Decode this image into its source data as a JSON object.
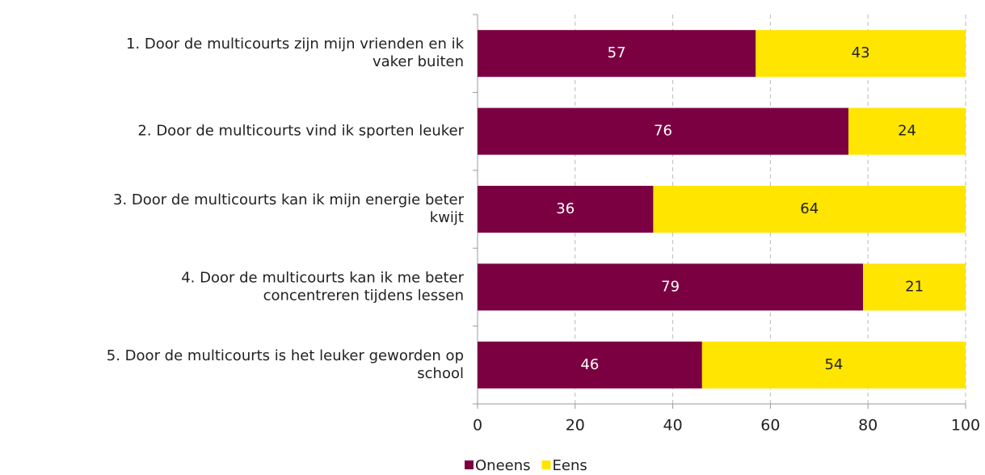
{
  "chart_data": {
    "type": "stacked-bar-horizontal",
    "categories": [
      [
        "1. Door de multicourts zijn mijn vrienden en ik",
        "vaker buiten"
      ],
      [
        "2. Door de multicourts vind ik sporten leuker"
      ],
      [
        "3. Door de multicourts kan ik mijn energie beter",
        "kwijt"
      ],
      [
        "4. Door de multicourts kan ik me beter",
        "concentreren tijdens lessen"
      ],
      [
        "5. Door de multicourts is het leuker geworden op",
        "school"
      ]
    ],
    "series": [
      {
        "name": "Oneens",
        "color": "#7b0041",
        "label_color": "#ffffff",
        "values": [
          57,
          76,
          36,
          79,
          46
        ]
      },
      {
        "name": "Eens",
        "color": "#ffe500",
        "label_color": "#222222",
        "values": [
          43,
          24,
          64,
          21,
          54
        ]
      }
    ],
    "xlim": [
      0,
      100
    ],
    "xticks": [
      0,
      20,
      40,
      60,
      80,
      100
    ],
    "grid": true,
    "legend": "bottom"
  }
}
